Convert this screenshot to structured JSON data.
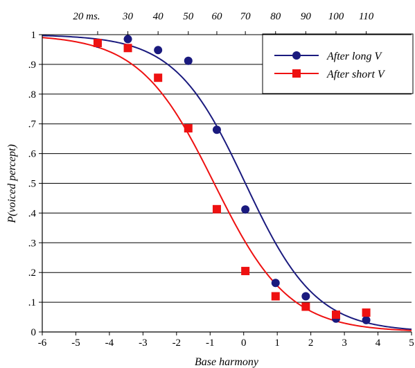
{
  "chart_data": {
    "type": "scatter",
    "xlabel": "Base harmony",
    "ylabel": "P(voiced percept)",
    "xlim": [
      -6,
      5
    ],
    "ylim": [
      0,
      1
    ],
    "x_ticks": [
      -6,
      -5,
      -4,
      -3,
      -2,
      -1,
      0,
      1,
      2,
      3,
      4,
      5
    ],
    "x_tick_labels": [
      "-6",
      "-5",
      "-4",
      "-3",
      "-2",
      "-1",
      "0",
      "1",
      "2",
      "3",
      "4",
      "5"
    ],
    "y_ticks": [
      0,
      0.1,
      0.2,
      0.3,
      0.4,
      0.5,
      0.6,
      0.7,
      0.8,
      0.9,
      1
    ],
    "y_tick_labels": [
      "0",
      ".1",
      ".2",
      ".3",
      ".4",
      ".5",
      ".6",
      ".7",
      ".8",
      ".9",
      "1"
    ],
    "grid": "horizontal",
    "top_axis": {
      "ticks": [
        -4.35,
        -3.45,
        -2.55,
        -1.65,
        -0.8,
        0.05,
        0.95,
        1.85,
        2.75,
        3.65
      ],
      "labels": [
        "20 ms.",
        "30",
        "40",
        "50",
        "60",
        "70",
        "80",
        "90",
        "100",
        "110"
      ]
    },
    "legend": {
      "placement": "top-right",
      "entries": [
        {
          "label": "After long V",
          "marker": "circle",
          "color": "#1a1a7e"
        },
        {
          "label": "After short V",
          "marker": "square",
          "color": "#ee1111"
        }
      ]
    },
    "series": [
      {
        "name": "After long V",
        "marker": "circle",
        "color": "#1a1a7e",
        "x": [
          -4.35,
          -3.45,
          -2.55,
          -1.65,
          -0.8,
          0.05,
          0.95,
          1.85,
          2.75,
          3.65
        ],
        "y": [
          0.97,
          0.985,
          0.948,
          0.912,
          0.68,
          0.412,
          0.165,
          0.12,
          0.045,
          0.04
        ],
        "fit": {
          "midpoint": 0.05,
          "slope": 0.95
        }
      },
      {
        "name": "After short V",
        "marker": "square",
        "color": "#ee1111",
        "x": [
          -4.35,
          -3.45,
          -2.55,
          -1.65,
          -0.8,
          0.05,
          0.95,
          1.85,
          2.75,
          3.65
        ],
        "y": [
          0.972,
          0.955,
          0.855,
          0.685,
          0.413,
          0.205,
          0.12,
          0.085,
          0.058,
          0.065
        ],
        "fit": {
          "midpoint": -0.88,
          "slope": 0.9
        }
      }
    ]
  }
}
